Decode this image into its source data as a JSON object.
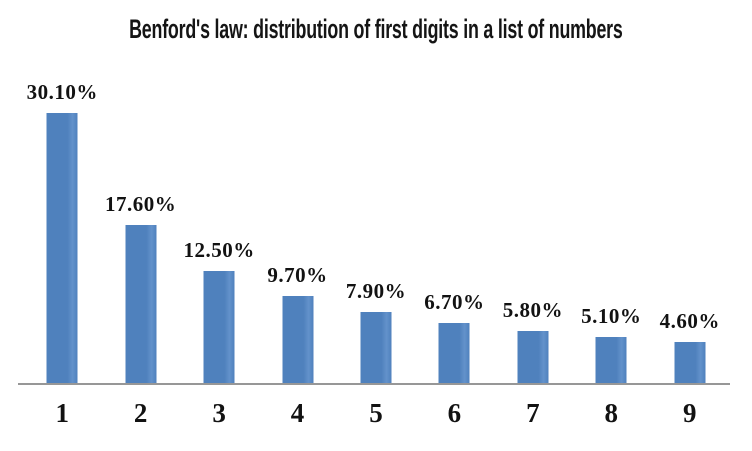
{
  "page": {
    "background": "#ffffff"
  },
  "chart_data": {
    "type": "bar",
    "title": "Benford's law: distribution of first digits in a list of numbers",
    "categories": [
      "1",
      "2",
      "3",
      "4",
      "5",
      "6",
      "7",
      "8",
      "9"
    ],
    "values": [
      30.1,
      17.6,
      12.5,
      9.7,
      7.9,
      6.7,
      5.8,
      5.1,
      4.6
    ],
    "data_labels": [
      "30.10%",
      "17.60%",
      "12.50%",
      "9.70%",
      "7.90%",
      "6.70%",
      "5.80%",
      "5.10%",
      "4.60%"
    ],
    "xlabel": "",
    "ylabel": "",
    "ylim": [
      0,
      33
    ],
    "grid": false,
    "legend": false,
    "bar_color": "#4f81bd",
    "bar_color_light": "#6392cb",
    "axis_color": "#979797",
    "text_color": "#121212",
    "title_color": "#151515"
  }
}
